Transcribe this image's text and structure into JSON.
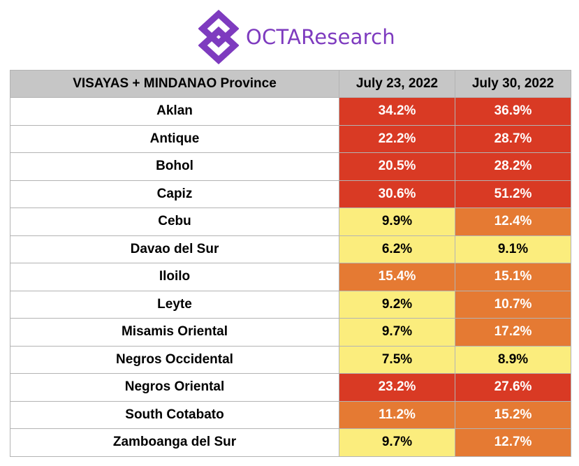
{
  "brand": {
    "name": "OCTAResearch",
    "color": "#7e3bbf",
    "logo_icon": "octa-logo-icon"
  },
  "colors": {
    "high": "#d93a24",
    "medium": "#e57a33",
    "low": "#fbed7d"
  },
  "chart_data": {
    "type": "table",
    "columns": [
      "VISAYAS + MINDANAO Province",
      "July 23, 2022",
      "July 30, 2022"
    ],
    "rows": [
      {
        "province": "Aklan",
        "july23": "34.2%",
        "july30": "36.9%",
        "level23": "high",
        "level30": "high"
      },
      {
        "province": "Antique",
        "july23": "22.2%",
        "july30": "28.7%",
        "level23": "high",
        "level30": "high"
      },
      {
        "province": "Bohol",
        "july23": "20.5%",
        "july30": "28.2%",
        "level23": "high",
        "level30": "high"
      },
      {
        "province": "Capiz",
        "july23": "30.6%",
        "july30": "51.2%",
        "level23": "high",
        "level30": "high"
      },
      {
        "province": "Cebu",
        "july23": "9.9%",
        "july30": "12.4%",
        "level23": "low",
        "level30": "medium"
      },
      {
        "province": "Davao del Sur",
        "july23": "6.2%",
        "july30": "9.1%",
        "level23": "low",
        "level30": "low"
      },
      {
        "province": "Iloilo",
        "july23": "15.4%",
        "july30": "15.1%",
        "level23": "medium",
        "level30": "medium"
      },
      {
        "province": "Leyte",
        "july23": "9.2%",
        "july30": "10.7%",
        "level23": "low",
        "level30": "medium"
      },
      {
        "province": "Misamis Oriental",
        "july23": "9.7%",
        "july30": "17.2%",
        "level23": "low",
        "level30": "medium"
      },
      {
        "province": "Negros Occidental",
        "july23": "7.5%",
        "july30": "8.9%",
        "level23": "low",
        "level30": "low"
      },
      {
        "province": "Negros Oriental",
        "july23": "23.2%",
        "july30": "27.6%",
        "level23": "high",
        "level30": "high"
      },
      {
        "province": "South Cotabato",
        "july23": "11.2%",
        "july30": "15.2%",
        "level23": "medium",
        "level30": "medium"
      },
      {
        "province": "Zamboanga del Sur",
        "july23": "9.7%",
        "july30": "12.7%",
        "level23": "low",
        "level30": "medium"
      }
    ]
  }
}
